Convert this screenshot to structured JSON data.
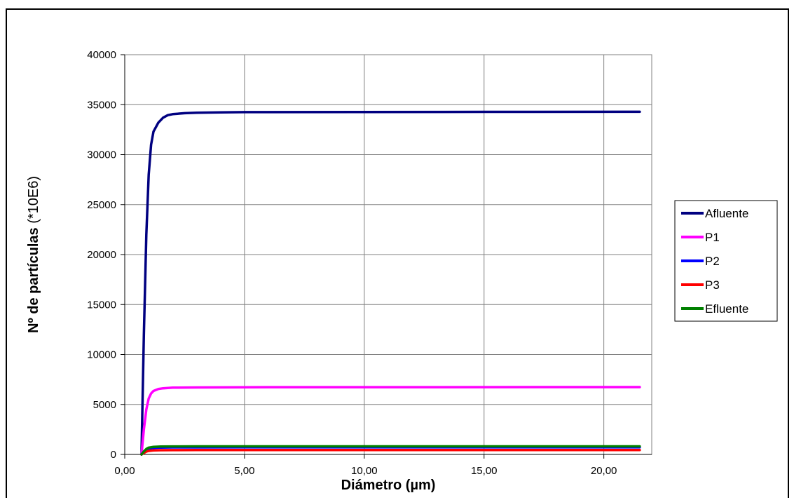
{
  "chart_data": {
    "type": "line",
    "title": "",
    "xlabel": "Diámetro (µm)",
    "ylabel_bold": "Nº de partículas",
    "ylabel_rest": " (*10E6)",
    "xlim": [
      0,
      22
    ],
    "ylim": [
      0,
      40000
    ],
    "x_ticks": [
      0,
      5,
      10,
      15,
      20
    ],
    "x_tick_labels": [
      "0,00",
      "5,00",
      "10,00",
      "15,00",
      "20,00"
    ],
    "y_ticks": [
      0,
      5000,
      10000,
      15000,
      20000,
      25000,
      30000,
      35000,
      40000
    ],
    "y_tick_labels": [
      "0",
      "5000",
      "10000",
      "15000",
      "20000",
      "25000",
      "30000",
      "35000",
      "40000"
    ],
    "grid": true,
    "legend_position": "right",
    "series": [
      {
        "name": "Afluente",
        "color": "#000080",
        "x": [
          0.7,
          0.8,
          0.9,
          1.0,
          1.1,
          1.2,
          1.4,
          1.6,
          1.8,
          2.0,
          2.5,
          3.0,
          4.0,
          5.0,
          10.0,
          15.0,
          21.5
        ],
        "y": [
          0,
          12000,
          22000,
          28000,
          31000,
          32300,
          33200,
          33700,
          33950,
          34050,
          34150,
          34200,
          34230,
          34250,
          34270,
          34280,
          34290
        ]
      },
      {
        "name": "P1",
        "color": "#FF00FF",
        "x": [
          0.7,
          0.8,
          0.9,
          1.0,
          1.1,
          1.2,
          1.4,
          1.6,
          2.0,
          3.0,
          5.0,
          10.0,
          21.5
        ],
        "y": [
          0,
          2500,
          4500,
          5600,
          6100,
          6350,
          6550,
          6620,
          6680,
          6700,
          6720,
          6730,
          6740
        ]
      },
      {
        "name": "P2",
        "color": "#0000FF",
        "x": [
          0.7,
          0.8,
          0.9,
          1.0,
          1.2,
          1.5,
          2.0,
          3.0,
          5.0,
          21.5
        ],
        "y": [
          0,
          250,
          450,
          560,
          650,
          690,
          700,
          705,
          710,
          710
        ]
      },
      {
        "name": "P3",
        "color": "#FF0000",
        "x": [
          0.7,
          0.8,
          0.9,
          1.0,
          1.2,
          1.5,
          2.0,
          3.0,
          5.0,
          21.5
        ],
        "y": [
          0,
          150,
          280,
          350,
          400,
          420,
          430,
          435,
          440,
          440
        ]
      },
      {
        "name": "Efluente",
        "color": "#008000",
        "x": [
          0.7,
          0.8,
          0.9,
          1.0,
          1.2,
          1.5,
          2.0,
          3.0,
          5.0,
          21.5
        ],
        "y": [
          0,
          300,
          550,
          680,
          760,
          790,
          800,
          805,
          810,
          810
        ]
      }
    ]
  }
}
